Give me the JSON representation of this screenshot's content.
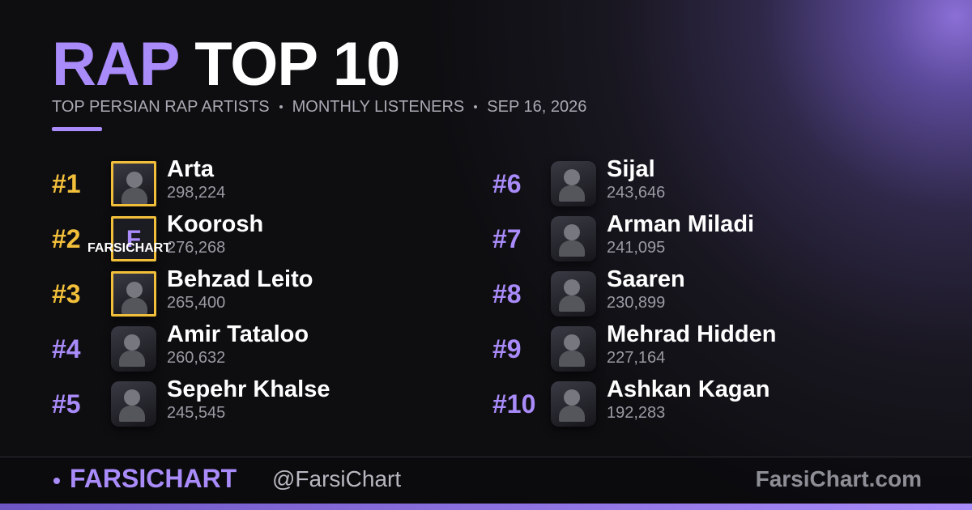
{
  "header": {
    "title_accent": "RAP",
    "title_main": "TOP 10",
    "subtitle": [
      "TOP PERSIAN RAP ARTISTS",
      "MONTHLY LISTENERS",
      "SEP 16, 2026"
    ]
  },
  "artists": [
    {
      "rank": "#1",
      "name": "Arta",
      "listeners": "298,224"
    },
    {
      "rank": "#2",
      "name": "Koorosh",
      "listeners": "276,268",
      "avatar_letter": "F",
      "avatar_caption": "FARSICHART"
    },
    {
      "rank": "#3",
      "name": "Behzad Leito",
      "listeners": "265,400"
    },
    {
      "rank": "#4",
      "name": "Amir Tataloo",
      "listeners": "260,632"
    },
    {
      "rank": "#5",
      "name": "Sepehr Khalse",
      "listeners": "245,545"
    },
    {
      "rank": "#6",
      "name": "Sijal",
      "listeners": "243,646"
    },
    {
      "rank": "#7",
      "name": "Arman Miladi",
      "listeners": "241,095"
    },
    {
      "rank": "#8",
      "name": "Saaren",
      "listeners": "230,899"
    },
    {
      "rank": "#9",
      "name": "Mehrad Hidden",
      "listeners": "227,164"
    },
    {
      "rank": "#10",
      "name": "Ashkan Kagan",
      "listeners": "192,283"
    }
  ],
  "footer": {
    "brand": "FARSICHART",
    "handle": "@FarsiChart",
    "site": "FarsiChart.com"
  }
}
